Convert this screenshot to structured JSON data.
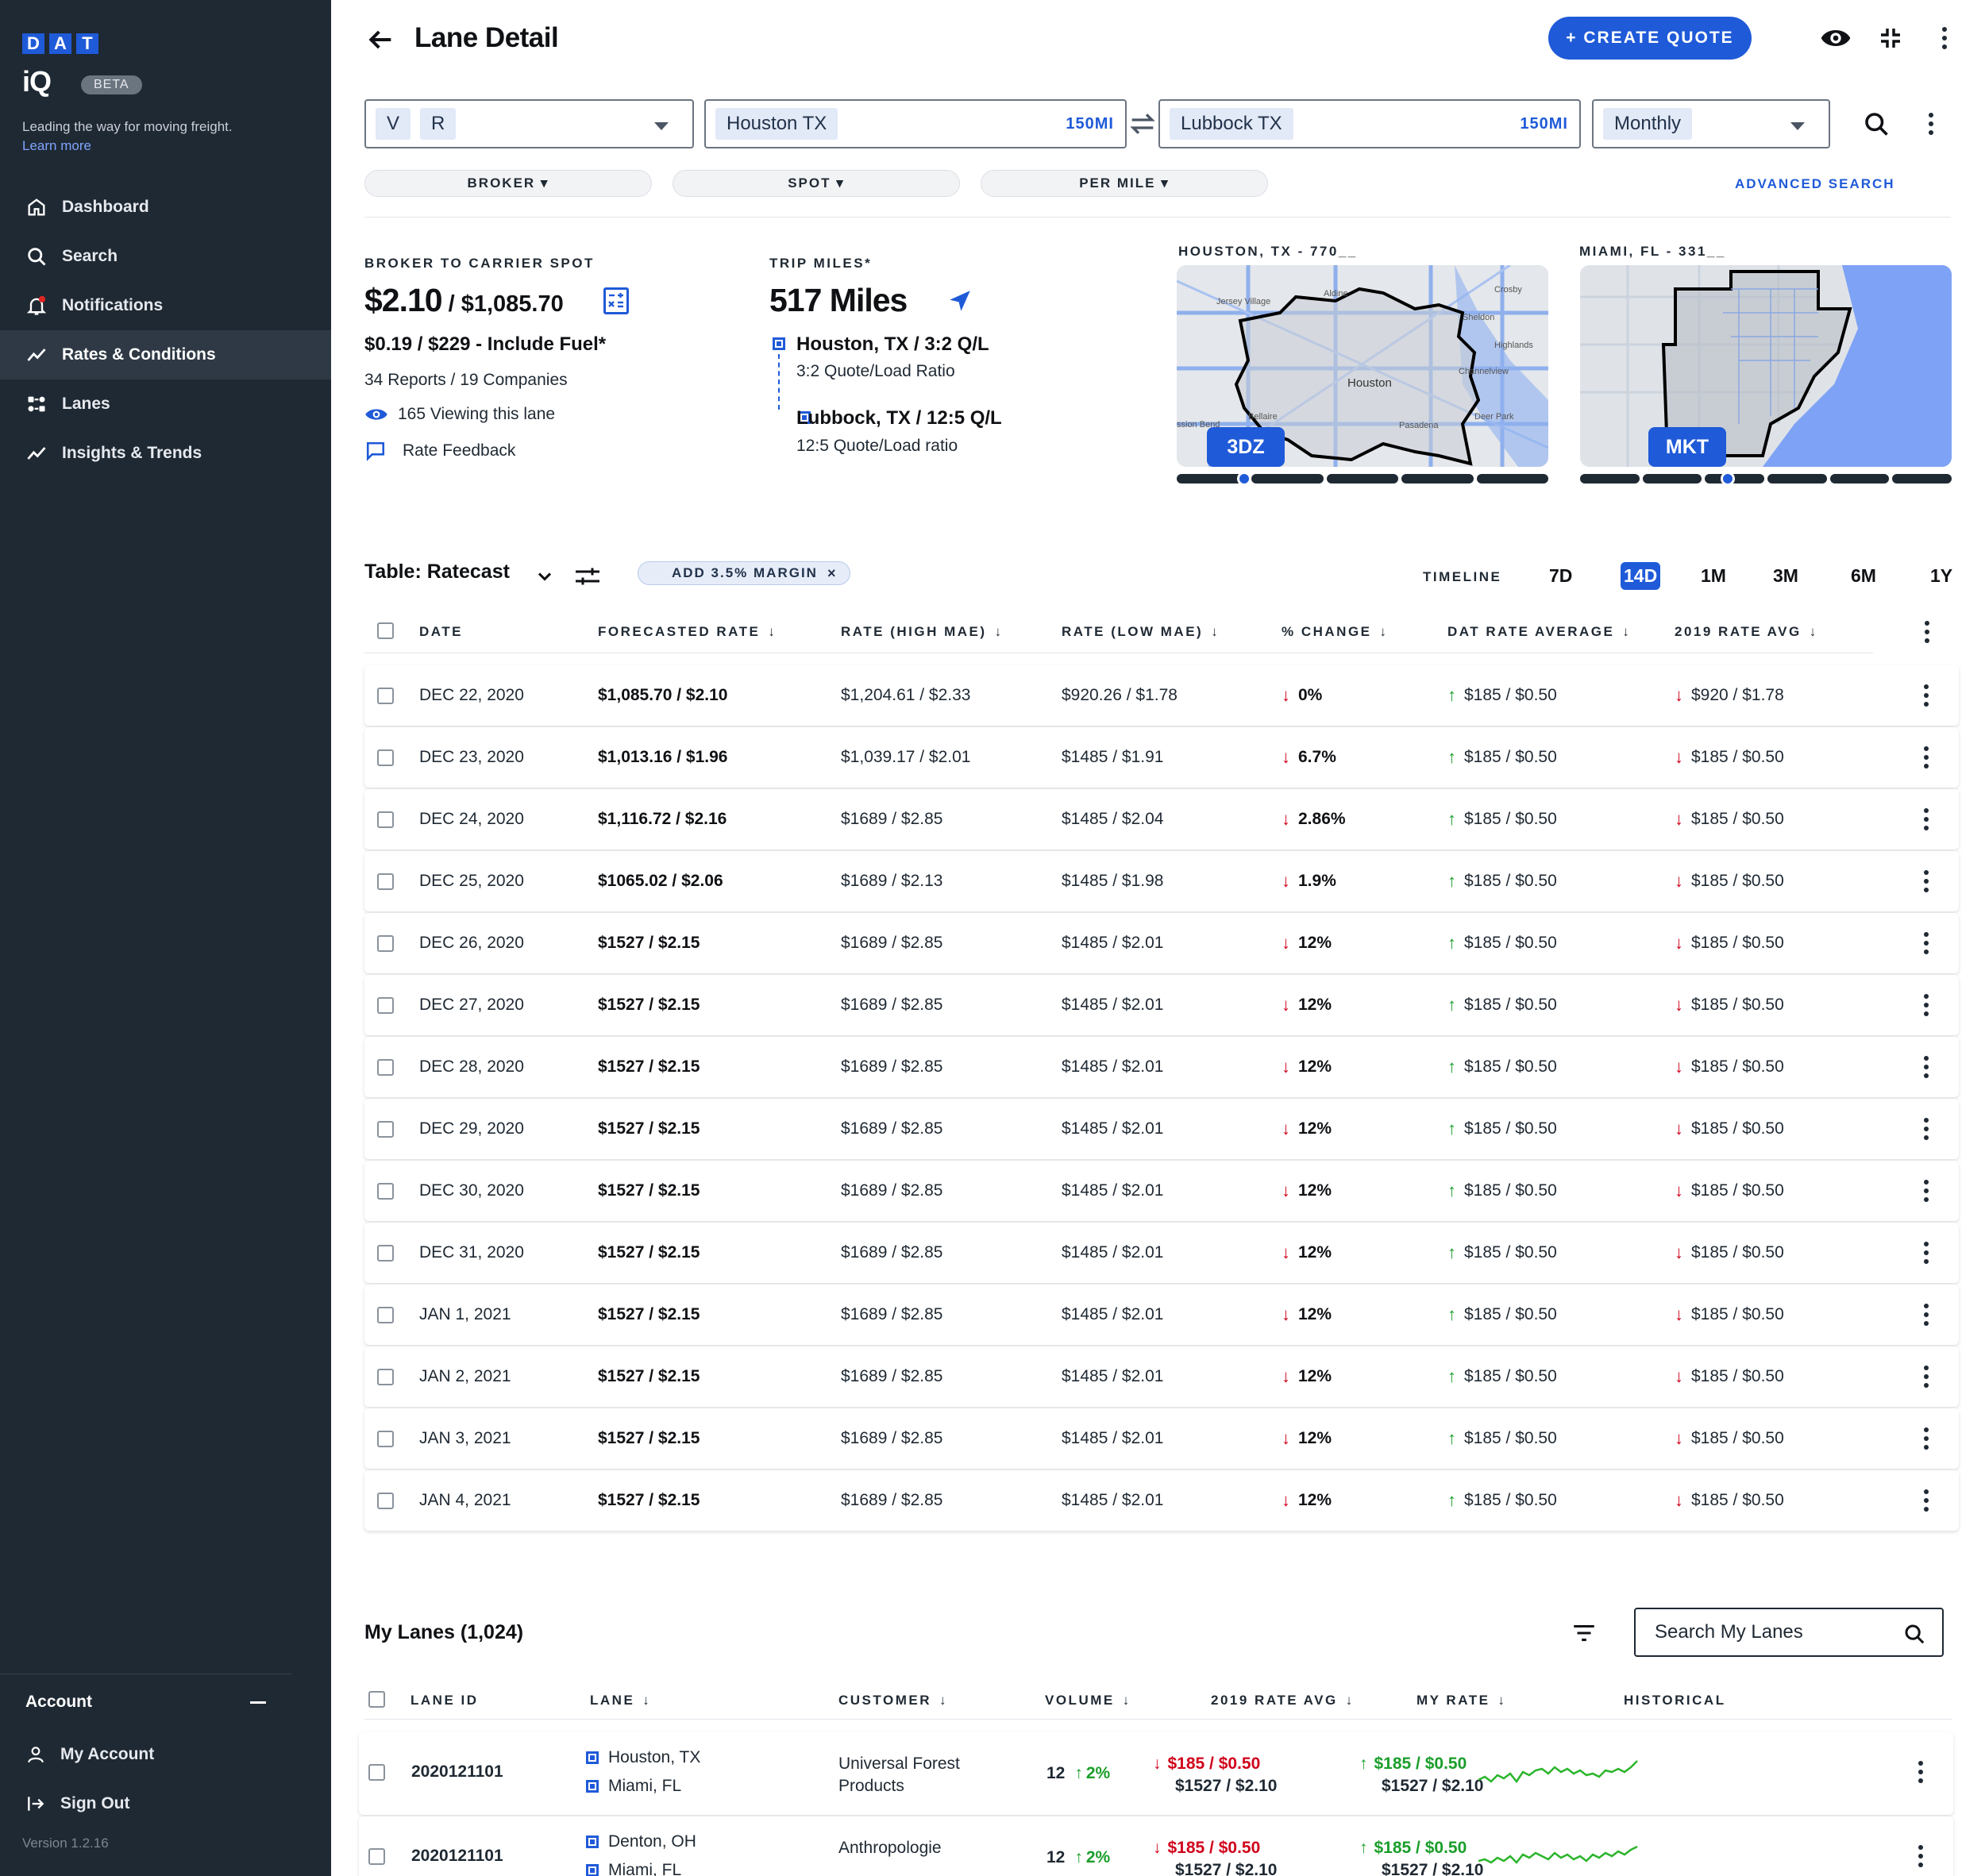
{
  "sidebar": {
    "brand": {
      "letters": [
        "D",
        "A",
        "T"
      ],
      "product": "iQ",
      "badge": "BETA"
    },
    "tagline": "Leading the way for moving freight.",
    "learn_more": "Learn more",
    "nav": [
      {
        "label": "Dashboard",
        "icon": "home-icon"
      },
      {
        "label": "Search",
        "icon": "search-icon"
      },
      {
        "label": "Notifications",
        "icon": "bell-icon"
      },
      {
        "label": "Rates & Conditions",
        "icon": "trend-icon",
        "active": true
      },
      {
        "label": "Lanes",
        "icon": "lanes-icon"
      },
      {
        "label": "Insights & Trends",
        "icon": "trend-icon"
      }
    ],
    "account": {
      "heading": "Account",
      "items": [
        "My Account",
        "Sign Out"
      ]
    },
    "version": "Version 1.2.16"
  },
  "header": {
    "title": "Lane Detail",
    "create_quote": "+ CREATE QUOTE"
  },
  "search": {
    "equipment": [
      "V",
      "R"
    ],
    "origin": "Houston TX",
    "origin_radius": "150MI",
    "destination": "Lubbock TX",
    "destination_radius": "150MI",
    "frequency": "Monthly",
    "filters": [
      "BROKER",
      "SPOT",
      "PER MILE"
    ],
    "advanced": "ADVANCED SEARCH"
  },
  "summary": {
    "label": "BROKER TO CARRIER SPOT",
    "rate_per_mile": "$2.10",
    "rate_total": "/ $1,085.70",
    "fuel": "$0.19 / $229 - Include Fuel*",
    "reports": "34 Reports / 19 Companies",
    "viewing": "165 Viewing this lane",
    "feedback": "Rate Feedback"
  },
  "trip": {
    "label": "TRIP MILES*",
    "miles": "517 Miles",
    "origin": "Houston, TX / 3:2 Q/L",
    "origin_sub": "3:2 Quote/Load Ratio",
    "destination": "Lubbock, TX / 12:5 Q/L",
    "destination_sub": "12:5 Quote/Load ratio"
  },
  "maps": [
    {
      "title": "HOUSTON, TX - 770__",
      "tag": "3DZ",
      "city": "Houston",
      "labels": [
        "Jersey Village",
        "Aldine",
        "Crosby",
        "Sheldon",
        "Highlands",
        "Channelview",
        "Deer Park",
        "Bellaire",
        "Pasadena",
        "ssion Bend"
      ]
    },
    {
      "title": "MIAMI, FL - 331__",
      "tag": "MKT"
    }
  ],
  "table_controls": {
    "title": "Table: Ratecast",
    "margin_chip": "ADD 3.5% MARGIN",
    "timeline_label": "TIMELINE",
    "timeline": [
      "7D",
      "14D",
      "1M",
      "3M",
      "6M",
      "1Y"
    ],
    "timeline_active": "14D"
  },
  "rate_table": {
    "headers": [
      "DATE",
      "FORECASTED RATE",
      "RATE (HIGH MAE)",
      "RATE (LOW MAE)",
      "% CHANGE",
      "DAT RATE AVERAGE",
      "2019 RATE AVG"
    ],
    "rows": [
      {
        "date": "DEC 22, 2020",
        "forecast": "$1,085.70 / $2.10",
        "high": "$1,204.61 / $2.33",
        "low": "$920.26 / $1.78",
        "change": "0%",
        "dat": "$185 / $0.50",
        "avg2019": "$920 / $1.78"
      },
      {
        "date": "DEC 23, 2020",
        "forecast": "$1,013.16 / $1.96",
        "high": "$1,039.17 / $2.01",
        "low": "$1485 / $1.91",
        "change": "6.7%",
        "dat": "$185 / $0.50",
        "avg2019": "$185 / $0.50"
      },
      {
        "date": "DEC 24, 2020",
        "forecast": "$1,116.72 / $2.16",
        "high": "$1689 / $2.85",
        "low": "$1485 / $2.04",
        "change": "2.86%",
        "dat": "$185 / $0.50",
        "avg2019": "$185 / $0.50"
      },
      {
        "date": "DEC 25, 2020",
        "forecast": "$1065.02 / $2.06",
        "high": "$1689 / $2.13",
        "low": "$1485 / $1.98",
        "change": "1.9%",
        "dat": "$185 / $0.50",
        "avg2019": "$185 / $0.50"
      },
      {
        "date": "DEC 26, 2020",
        "forecast": "$1527 / $2.15",
        "high": "$1689 / $2.85",
        "low": "$1485 / $2.01",
        "change": "12%",
        "dat": "$185 / $0.50",
        "avg2019": "$185 / $0.50"
      },
      {
        "date": "DEC 27, 2020",
        "forecast": "$1527 / $2.15",
        "high": "$1689 / $2.85",
        "low": "$1485 / $2.01",
        "change": "12%",
        "dat": "$185 / $0.50",
        "avg2019": "$185 / $0.50"
      },
      {
        "date": "DEC 28, 2020",
        "forecast": "$1527 / $2.15",
        "high": "$1689 / $2.85",
        "low": "$1485 / $2.01",
        "change": "12%",
        "dat": "$185 / $0.50",
        "avg2019": "$185 / $0.50"
      },
      {
        "date": "DEC 29, 2020",
        "forecast": "$1527 / $2.15",
        "high": "$1689 / $2.85",
        "low": "$1485 / $2.01",
        "change": "12%",
        "dat": "$185 / $0.50",
        "avg2019": "$185 / $0.50"
      },
      {
        "date": "DEC 30, 2020",
        "forecast": "$1527 / $2.15",
        "high": "$1689 / $2.85",
        "low": "$1485 / $2.01",
        "change": "12%",
        "dat": "$185 / $0.50",
        "avg2019": "$185 / $0.50"
      },
      {
        "date": "DEC 31, 2020",
        "forecast": "$1527 / $2.15",
        "high": "$1689 / $2.85",
        "low": "$1485 / $2.01",
        "change": "12%",
        "dat": "$185 / $0.50",
        "avg2019": "$185 / $0.50"
      },
      {
        "date": "JAN 1, 2021",
        "forecast": "$1527 / $2.15",
        "high": "$1689 / $2.85",
        "low": "$1485 / $2.01",
        "change": "12%",
        "dat": "$185 / $0.50",
        "avg2019": "$185 / $0.50"
      },
      {
        "date": "JAN 2, 2021",
        "forecast": "$1527 / $2.15",
        "high": "$1689 / $2.85",
        "low": "$1485 / $2.01",
        "change": "12%",
        "dat": "$185 / $0.50",
        "avg2019": "$185 / $0.50"
      },
      {
        "date": "JAN 3, 2021",
        "forecast": "$1527 / $2.15",
        "high": "$1689 / $2.85",
        "low": "$1485 / $2.01",
        "change": "12%",
        "dat": "$185 / $0.50",
        "avg2019": "$185 / $0.50"
      },
      {
        "date": "JAN 4, 2021",
        "forecast": "$1527 / $2.15",
        "high": "$1689 / $2.85",
        "low": "$1485 / $2.01",
        "change": "12%",
        "dat": "$185 / $0.50",
        "avg2019": "$185 / $0.50"
      }
    ]
  },
  "my_lanes": {
    "title": "My Lanes (1,024)",
    "search_placeholder": "Search My Lanes",
    "headers": [
      "LANE ID",
      "LANE",
      "CUSTOMER",
      "VOLUME",
      "2019 RATE AVG",
      "MY RATE",
      "HISTORICAL"
    ],
    "rows": [
      {
        "id": "2020121101",
        "origin": "Houston, TX",
        "dest": "Miami, FL",
        "customer_1": "Universal Forest",
        "customer_2": "Products",
        "volume": "12",
        "vol_change": "2%",
        "avg_top": "$185 / $0.50",
        "avg_bottom": "$1527 / $2.10",
        "my_top": "$185 / $0.50",
        "my_bottom": "$1527 / $2.10"
      },
      {
        "id": "2020121101",
        "origin": "Denton, OH",
        "dest": "Miami, FL",
        "customer_1": "Anthropologie",
        "customer_2": "",
        "volume": "12",
        "vol_change": "2%",
        "avg_top": "$185 / $0.50",
        "avg_bottom": "$1527 / $2.10",
        "my_top": "$185 / $0.50",
        "my_bottom": "$1527 / $2.10"
      }
    ]
  },
  "colors": {
    "accent": "#1f5ad8",
    "sidebar": "#1f2933",
    "up": "#1a9e2a",
    "down": "#d0021b"
  }
}
